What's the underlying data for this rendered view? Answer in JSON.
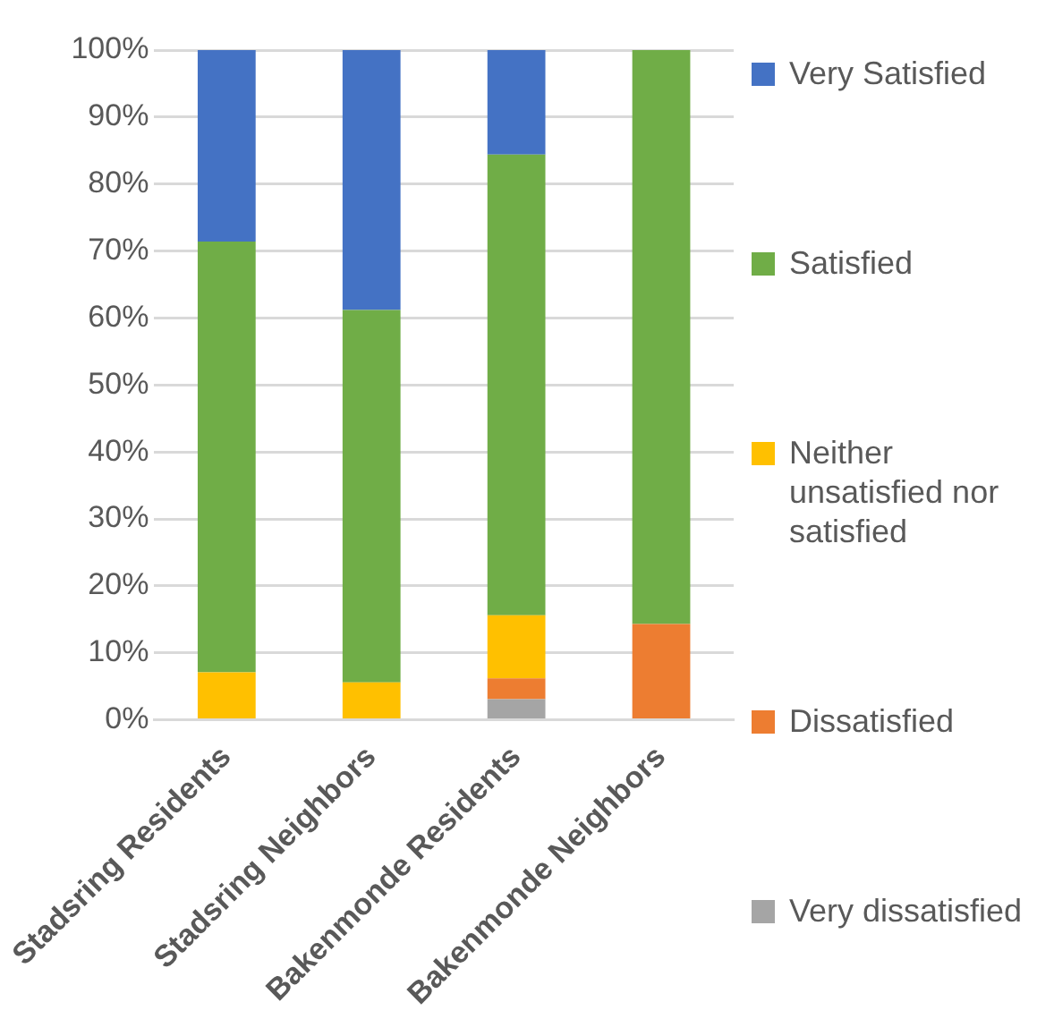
{
  "chart_data": {
    "type": "bar",
    "stacked": true,
    "categories": [
      "Stadsring Residents",
      "Stadsring Neighbors",
      "Bakenmonde Residents",
      "Bakenmonde Neighbors"
    ],
    "series": [
      {
        "name": "Very dissatisfied",
        "color": "#a5a5a5",
        "values": [
          0,
          0,
          3.1,
          0
        ]
      },
      {
        "name": "Dissatisfied",
        "color": "#ed7d31",
        "values": [
          0,
          0,
          3.1,
          14.3
        ]
      },
      {
        "name": "Neither unsatisfied nor satisfied",
        "color": "#ffc000",
        "values": [
          7.1,
          5.6,
          9.4,
          0
        ]
      },
      {
        "name": "Satisfied",
        "color": "#70ad47",
        "values": [
          64.3,
          55.6,
          68.8,
          85.7
        ]
      },
      {
        "name": "Very Satisfied",
        "color": "#4472c4",
        "values": [
          28.6,
          38.8,
          15.6,
          0
        ]
      }
    ],
    "ylim": [
      0,
      100
    ],
    "yticks": [
      {
        "value": 0,
        "label": "0%"
      },
      {
        "value": 10,
        "label": "10%"
      },
      {
        "value": 20,
        "label": "20%"
      },
      {
        "value": 30,
        "label": "30%"
      },
      {
        "value": 40,
        "label": "40%"
      },
      {
        "value": 50,
        "label": "50%"
      },
      {
        "value": 60,
        "label": "60%"
      },
      {
        "value": 70,
        "label": "70%"
      },
      {
        "value": 80,
        "label": "80%"
      },
      {
        "value": 90,
        "label": "90%"
      },
      {
        "value": 100,
        "label": "100%"
      }
    ],
    "grid": "y",
    "legend": "right"
  }
}
